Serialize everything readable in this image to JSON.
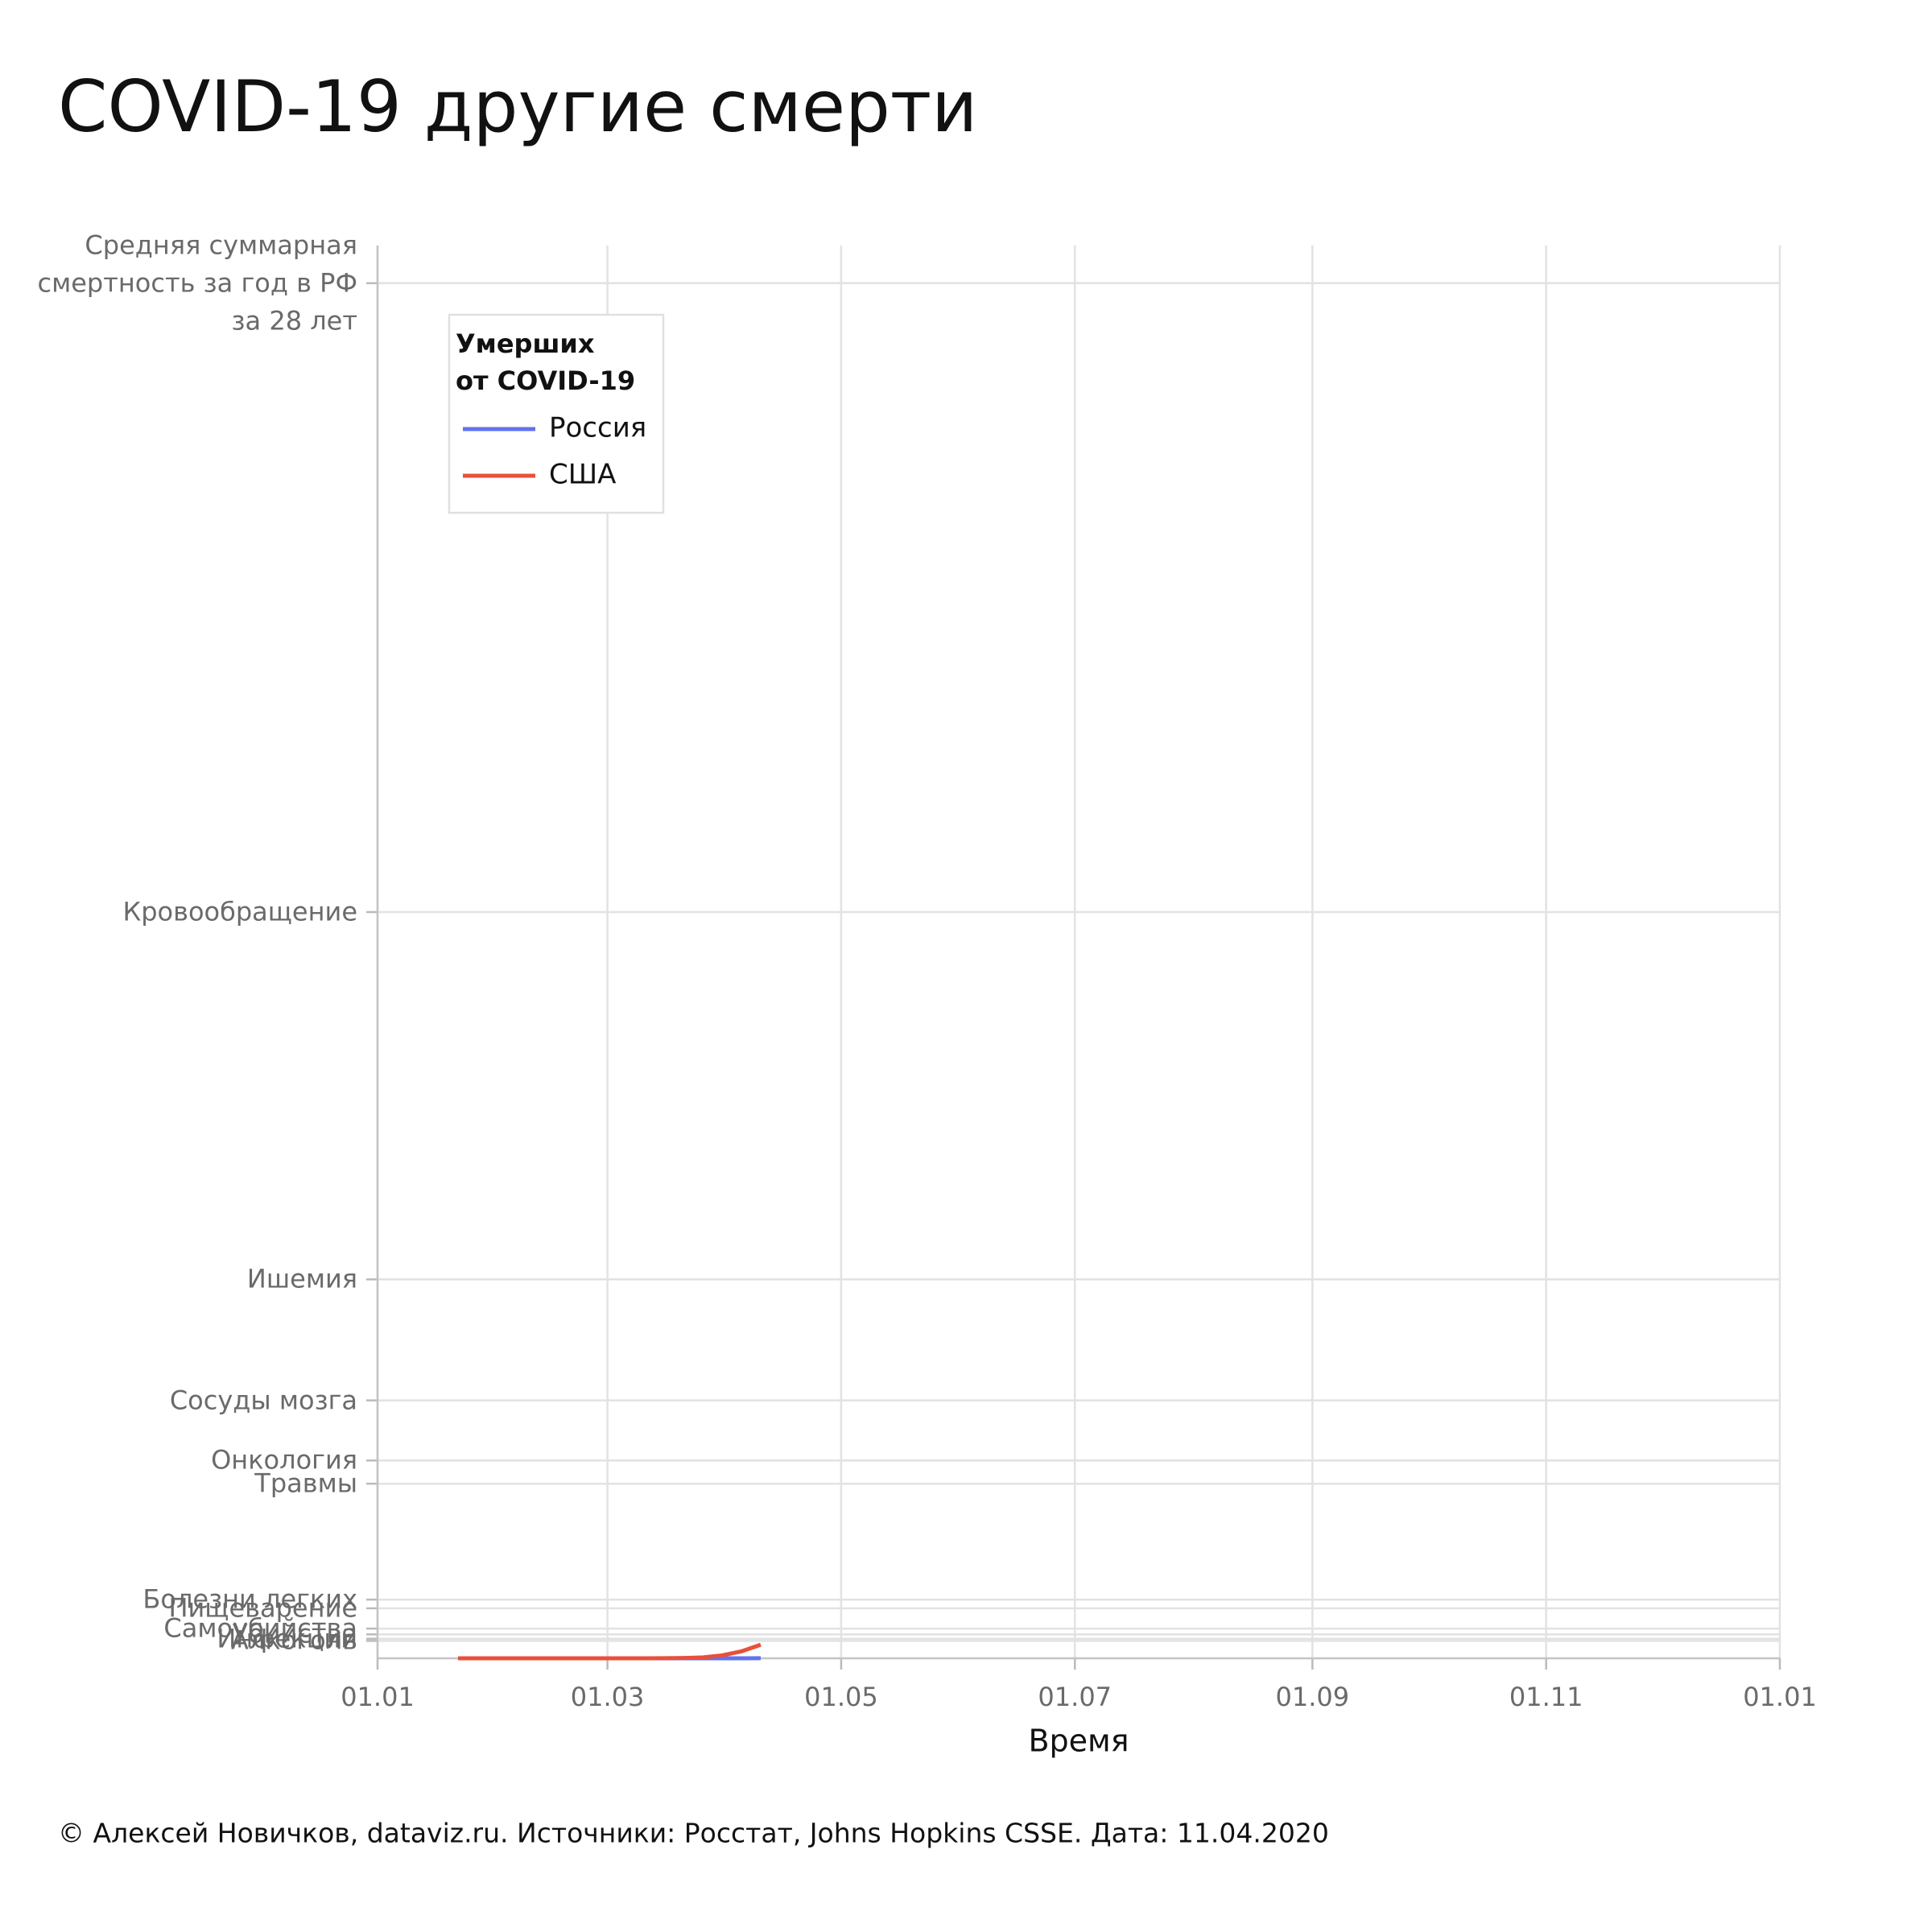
{
  "chart_data": {
    "type": "line",
    "title": "COVID-19 другие смерти",
    "x_label": "Время",
    "footer": "© Алексей Новичков, dataviz.ru. Источники: Росстат, Johns Hopkins CSSE. Дата: 11.04.2020",
    "legend_title": [
      "Умерших",
      "от COVID-19"
    ],
    "legend_position": "upper left",
    "grid": true,
    "x": [
      21,
      40,
      60,
      70,
      75,
      80,
      85,
      90,
      95,
      100
    ],
    "series": [
      {
        "name": "Россия",
        "color": "#6272ef",
        "values": [
          0,
          0,
          0,
          0,
          0,
          1,
          3,
          17,
          45,
          94
        ]
      },
      {
        "name": "США",
        "color": "#e8503a",
        "values": [
          0,
          0,
          1,
          38,
          108,
          427,
          1209,
          4076,
          9619,
          18777
        ]
      }
    ],
    "xlim": [
      0,
      366
    ],
    "xticks": [
      {
        "value": 0,
        "label": "01.01"
      },
      {
        "value": 60,
        "label": "01.03"
      },
      {
        "value": 121,
        "label": "01.05"
      },
      {
        "value": 182,
        "label": "01.07"
      },
      {
        "value": 244,
        "label": "01.09"
      },
      {
        "value": 305,
        "label": "01.11"
      },
      {
        "value": 366,
        "label": "01.01"
      }
    ],
    "ylim": [
      0,
      1950000
    ],
    "yticks": [
      {
        "value": 1898000,
        "label": "Средняя суммарная\nсмертность за год в РФ\nза 28 лет"
      },
      {
        "value": 1030000,
        "label": "Кровообращение"
      },
      {
        "value": 523000,
        "label": "Ишемия"
      },
      {
        "value": 356000,
        "label": "Сосуды мозга"
      },
      {
        "value": 273000,
        "label": "Онкология"
      },
      {
        "value": 241000,
        "label": "Травмы"
      },
      {
        "value": 81000,
        "label": "Болезни легких"
      },
      {
        "value": 69000,
        "label": "Пищеварение"
      },
      {
        "value": 41000,
        "label": "Самоубийства"
      },
      {
        "value": 33000,
        "label": "Убийства"
      },
      {
        "value": 27000,
        "label": "Инфекции"
      },
      {
        "value": 24000,
        "label": "Алкоголь"
      }
    ]
  }
}
